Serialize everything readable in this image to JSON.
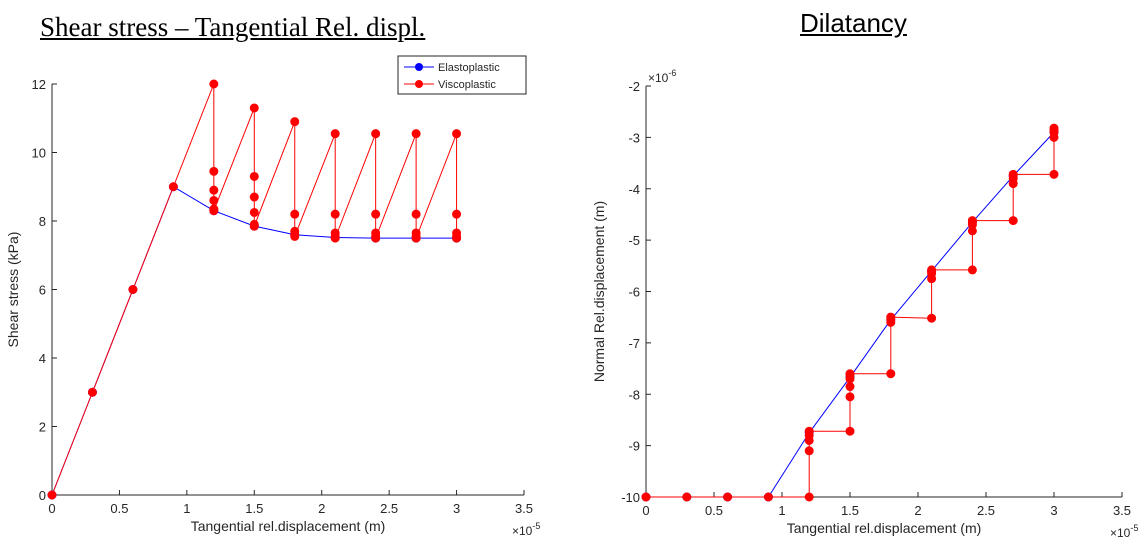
{
  "chart_data": [
    {
      "type": "line",
      "title": "Shear stress – Tangential Rel. displ.",
      "xlabel": "Tangential rel.displacement (m)",
      "ylabel": "Shear stress (kPa)",
      "x_exponent_label": "×10",
      "x_exponent_power": "-5",
      "xlim": [
        0,
        3.5
      ],
      "ylim": [
        0,
        12
      ],
      "x_ticks": [
        0,
        0.5,
        1,
        1.5,
        2,
        2.5,
        3,
        3.5
      ],
      "x_tick_labels": [
        "0",
        "0.5",
        "1",
        "1.5",
        "2",
        "2.5",
        "3",
        "3.5"
      ],
      "y_ticks": [
        0,
        2,
        4,
        6,
        8,
        10,
        12
      ],
      "y_tick_labels": [
        "0",
        "2",
        "4",
        "6",
        "8",
        "10",
        "12"
      ],
      "legend_position": "top-right",
      "series": [
        {
          "name": "Elastoplastic",
          "color": "#0000ff",
          "x": [
            0,
            0.3,
            0.6,
            0.9,
            1.2,
            1.5,
            1.8,
            2.1,
            2.4,
            2.7,
            3.0
          ],
          "y": [
            0,
            3,
            6,
            9,
            8.3,
            7.85,
            7.6,
            7.52,
            7.5,
            7.5,
            7.5
          ]
        },
        {
          "name": "Viscoplastic",
          "color": "#ff0000",
          "x": [
            0,
            0.3,
            0.6,
            0.9,
            1.2,
            1.2,
            1.2,
            1.2,
            1.2,
            1.2,
            1.5,
            1.5,
            1.5,
            1.5,
            1.5,
            1.5,
            1.8,
            1.8,
            1.8,
            1.8,
            1.8,
            2.1,
            2.1,
            2.1,
            2.1,
            2.1,
            2.4,
            2.4,
            2.4,
            2.4,
            2.4,
            2.7,
            2.7,
            2.7,
            2.7,
            2.7,
            3.0,
            3.0,
            3.0,
            3.0,
            3.0
          ],
          "y": [
            0,
            3,
            6,
            9,
            12,
            9.45,
            8.9,
            8.6,
            8.35,
            8.3,
            11.3,
            9.3,
            8.7,
            8.25,
            7.9,
            7.85,
            10.9,
            8.2,
            7.7,
            7.6,
            7.55,
            10.55,
            8.2,
            7.65,
            7.55,
            7.5,
            10.55,
            8.2,
            7.65,
            7.55,
            7.5,
            10.55,
            8.2,
            7.65,
            7.55,
            7.5,
            10.55,
            8.2,
            7.65,
            7.55,
            7.5
          ]
        }
      ]
    },
    {
      "type": "line",
      "title": "Dilatancy",
      "xlabel": "Tangential rel.displacement (m)",
      "ylabel": "Normal Rel.displacement (m)",
      "x_exponent_label": "×10",
      "x_exponent_power": "-5",
      "y_exponent_label": "×10",
      "y_exponent_power": "-6",
      "xlim": [
        0,
        3.5
      ],
      "ylim": [
        -10,
        -2
      ],
      "x_ticks": [
        0,
        0.5,
        1,
        1.5,
        2,
        2.5,
        3,
        3.5
      ],
      "x_tick_labels": [
        "0",
        "0.5",
        "1",
        "1.5",
        "2",
        "2.5",
        "3",
        "3.5"
      ],
      "y_ticks": [
        -10,
        -9,
        -8,
        -7,
        -6,
        -5,
        -4,
        -3,
        -2
      ],
      "y_tick_labels": [
        "-10",
        "-9",
        "-8",
        "-7",
        "-6",
        "-5",
        "-4",
        "-3",
        "-2"
      ],
      "series": [
        {
          "color": "#0000ff",
          "x": [
            0,
            0.3,
            0.6,
            0.9,
            1.2,
            1.5,
            1.8,
            2.1,
            2.4,
            2.7,
            3.0
          ],
          "y": [
            -10,
            -10,
            -10,
            -10,
            -8.75,
            -7.67,
            -6.55,
            -5.6,
            -4.65,
            -3.75,
            -2.9
          ]
        },
        {
          "color": "#ff0000",
          "x": [
            0,
            0.3,
            0.6,
            0.9,
            1.2,
            1.2,
            1.2,
            1.2,
            1.2,
            1.5,
            1.5,
            1.5,
            1.5,
            1.5,
            1.5,
            1.8,
            1.8,
            1.8,
            1.8,
            1.8,
            2.1,
            2.1,
            2.1,
            2.1,
            2.1,
            2.4,
            2.4,
            2.4,
            2.4,
            2.4,
            2.7,
            2.7,
            2.7,
            2.7,
            2.7,
            3.0,
            3.0,
            3.0,
            3.0,
            3.0
          ],
          "y": [
            -10,
            -10,
            -10,
            -10,
            -10,
            -9.1,
            -8.9,
            -8.8,
            -8.72,
            -8.72,
            -8.05,
            -7.85,
            -7.7,
            -7.62,
            -7.6,
            -7.6,
            -6.6,
            -6.55,
            -6.5,
            -6.5,
            -6.52,
            -5.75,
            -5.65,
            -5.6,
            -5.58,
            -5.58,
            -4.82,
            -4.7,
            -4.65,
            -4.62,
            -4.62,
            -3.9,
            -3.8,
            -3.75,
            -3.72,
            -3.72,
            -3.0,
            -2.9,
            -2.85,
            -2.82
          ]
        }
      ]
    }
  ]
}
